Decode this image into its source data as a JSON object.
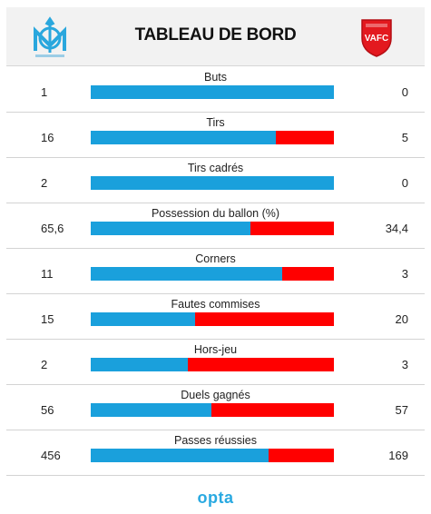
{
  "header": {
    "title": "TABLEAU DE BORD",
    "home_logo": "olympique-marseille-crest",
    "away_logo": "valenciennes-fc-crest",
    "away_logo_text": "VAFC"
  },
  "colors": {
    "home": "#1aa0dc",
    "away": "#ff0000",
    "brand": "#29a9e1"
  },
  "stats": [
    {
      "label": "Buts",
      "home": "1",
      "away": "0",
      "home_share": 1.0
    },
    {
      "label": "Tirs",
      "home": "16",
      "away": "5",
      "home_share": 0.762
    },
    {
      "label": "Tirs cadrés",
      "home": "2",
      "away": "0",
      "home_share": 1.0
    },
    {
      "label": "Possession du ballon (%)",
      "home": "65,6",
      "away": "34,4",
      "home_share": 0.656
    },
    {
      "label": "Corners",
      "home": "11",
      "away": "3",
      "home_share": 0.786
    },
    {
      "label": "Fautes commises",
      "home": "15",
      "away": "20",
      "home_share": 0.429
    },
    {
      "label": "Hors-jeu",
      "home": "2",
      "away": "3",
      "home_share": 0.4
    },
    {
      "label": "Duels gagnés",
      "home": "56",
      "away": "57",
      "home_share": 0.496
    },
    {
      "label": "Passes réussies",
      "home": "456",
      "away": "169",
      "home_share": 0.73
    }
  ],
  "footer": {
    "brand": "opta"
  }
}
